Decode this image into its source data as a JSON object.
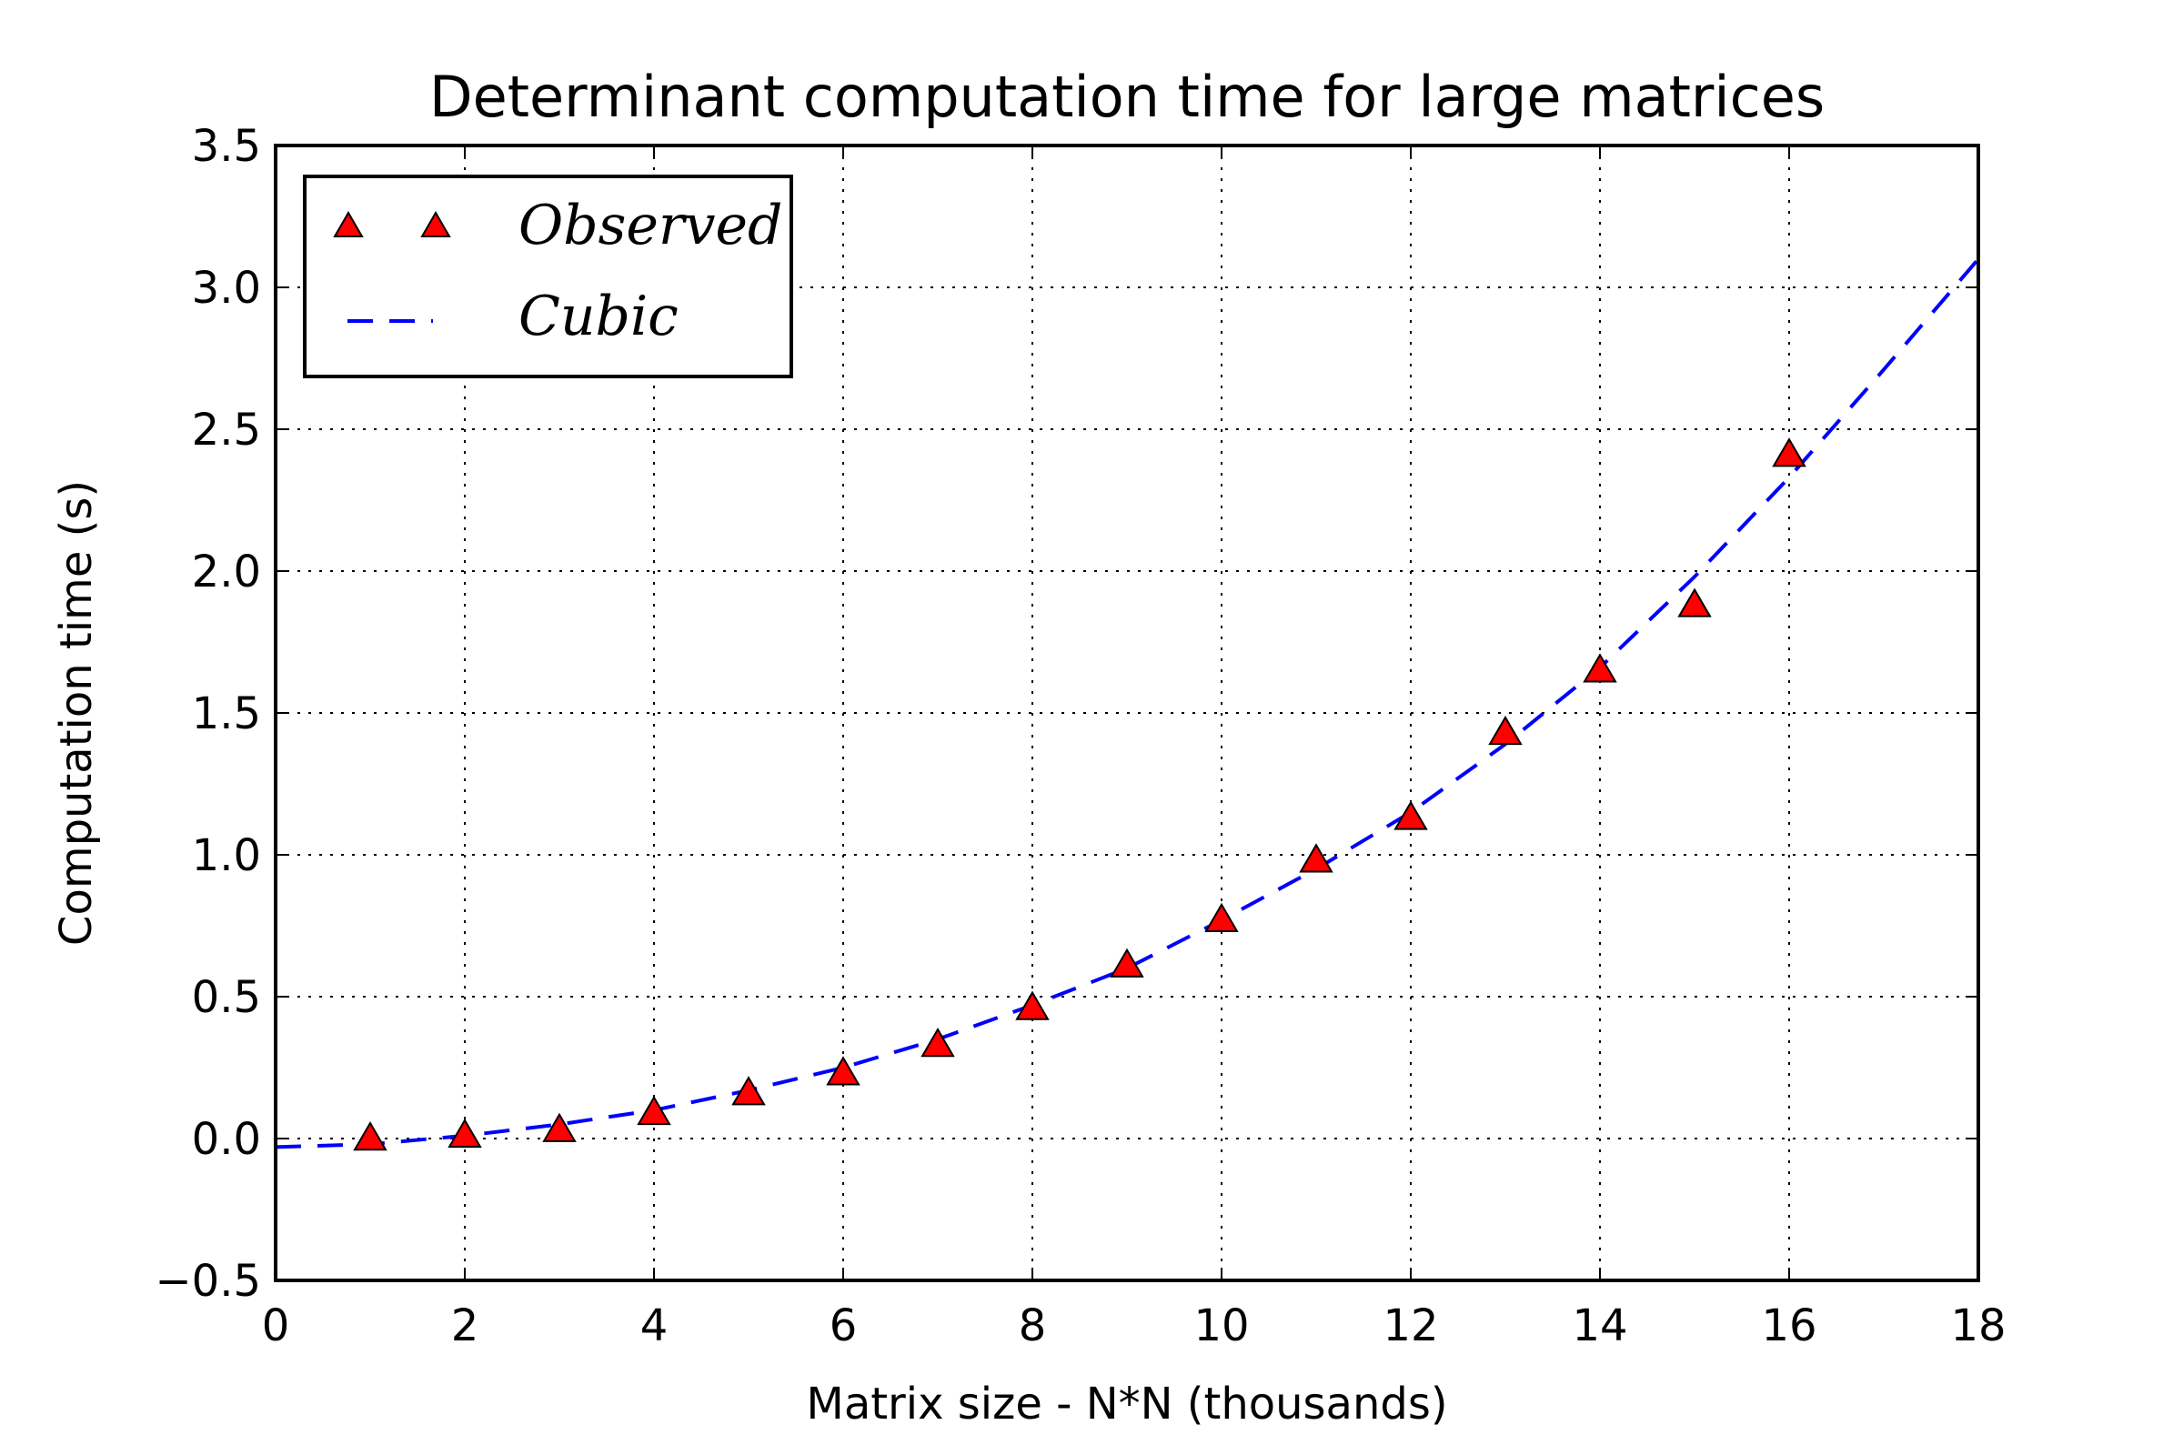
{
  "chart_data": {
    "type": "scatter",
    "title": "Determinant computation time for large matrices",
    "xlabel": "Matrix size - N*N (thousands)",
    "ylabel": "Computation time (s)",
    "xlim": [
      0,
      18
    ],
    "ylim": [
      -0.5,
      3.5
    ],
    "xticks": [
      0,
      2,
      4,
      6,
      8,
      10,
      12,
      14,
      16,
      18
    ],
    "xtick_labels": [
      "0",
      "2",
      "4",
      "6",
      "8",
      "10",
      "12",
      "14",
      "16",
      "18"
    ],
    "yticks": [
      -0.5,
      0.0,
      0.5,
      1.0,
      1.5,
      2.0,
      2.5,
      3.0,
      3.5
    ],
    "ytick_labels": [
      "−0.5",
      "0.0",
      "0.5",
      "1.0",
      "1.5",
      "2.0",
      "2.5",
      "3.0",
      "3.5"
    ],
    "grid": true,
    "legend_position": "top-left",
    "series": [
      {
        "name": "Observed",
        "kind": "markers",
        "marker": "triangle",
        "color": "#ff0000",
        "edge_color": "#000000",
        "x": [
          1,
          2,
          3,
          4,
          5,
          6,
          7,
          8,
          9,
          10,
          11,
          12,
          13,
          14,
          15,
          16
        ],
        "values": [
          0.0,
          0.01,
          0.03,
          0.09,
          0.16,
          0.23,
          0.33,
          0.46,
          0.61,
          0.77,
          0.98,
          1.13,
          1.43,
          1.65,
          1.88,
          2.41
        ]
      },
      {
        "name": "Cubic",
        "kind": "dashed-line",
        "color": "#0000ff",
        "x": [
          0,
          1,
          2,
          3,
          4,
          5,
          6,
          7,
          8,
          9,
          10,
          11,
          12,
          13,
          14,
          15,
          16,
          17,
          18
        ],
        "values": [
          -0.03,
          -0.02,
          0.01,
          0.05,
          0.1,
          0.17,
          0.25,
          0.35,
          0.47,
          0.6,
          0.77,
          0.95,
          1.15,
          1.39,
          1.66,
          1.98,
          2.33,
          2.71,
          3.1
        ]
      }
    ]
  }
}
